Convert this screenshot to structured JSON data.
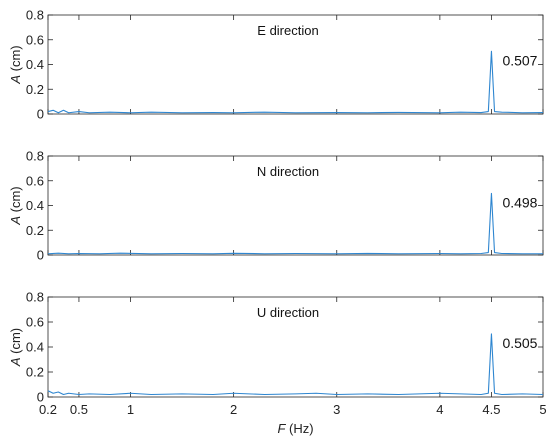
{
  "chart_data": [
    {
      "type": "line",
      "title": "E direction",
      "xlabel_var": "F",
      "xlabel_unit": " (Hz)",
      "ylabel_var": "A",
      "ylabel_unit": " (cm)",
      "xlim": [
        0.2,
        5
      ],
      "ylim": [
        0,
        0.8
      ],
      "xticks": [
        0.2,
        0.5,
        1,
        2,
        3,
        4,
        4.5,
        5
      ],
      "xtick_labels": [
        "0.2",
        "0.5",
        "1",
        "2",
        "3",
        "4",
        "4.5",
        "5"
      ],
      "yticks": [
        0,
        0.2,
        0.4,
        0.6,
        0.8
      ],
      "ytick_labels": [
        "0",
        "0.2",
        "0.4",
        "0.6",
        "0.8"
      ],
      "grid": false,
      "color": "#2e86d0",
      "peak": {
        "x": 4.5,
        "y": 0.507,
        "label": "0.507"
      },
      "series": [
        {
          "x": [
            0.2,
            0.25,
            0.3,
            0.35,
            0.4,
            0.5,
            0.6,
            0.8,
            1.0,
            1.2,
            1.5,
            1.8,
            2.0,
            2.3,
            2.6,
            3.0,
            3.3,
            3.6,
            4.0,
            4.2,
            4.4,
            4.47,
            4.5,
            4.53,
            4.6,
            4.8,
            5.0
          ],
          "y": [
            0.02,
            0.03,
            0.01,
            0.03,
            0.01,
            0.02,
            0.01,
            0.015,
            0.01,
            0.015,
            0.01,
            0.012,
            0.01,
            0.015,
            0.01,
            0.012,
            0.01,
            0.013,
            0.01,
            0.015,
            0.012,
            0.02,
            0.507,
            0.02,
            0.015,
            0.01,
            0.012
          ]
        }
      ]
    },
    {
      "type": "line",
      "title": "N direction",
      "xlabel_var": "F",
      "xlabel_unit": " (Hz)",
      "ylabel_var": "A",
      "ylabel_unit": " (cm)",
      "xlim": [
        0.2,
        5
      ],
      "ylim": [
        0,
        0.8
      ],
      "xticks": [
        0.2,
        0.5,
        1,
        2,
        3,
        4,
        4.5,
        5
      ],
      "xtick_labels": [
        "0.2",
        "0.5",
        "1",
        "2",
        "3",
        "4",
        "4.5",
        "5"
      ],
      "yticks": [
        0,
        0.2,
        0.4,
        0.6,
        0.8
      ],
      "ytick_labels": [
        "0",
        "0.2",
        "0.4",
        "0.6",
        "0.8"
      ],
      "grid": false,
      "color": "#2e86d0",
      "peak": {
        "x": 4.5,
        "y": 0.498,
        "label": "0.498"
      },
      "series": [
        {
          "x": [
            0.2,
            0.3,
            0.4,
            0.5,
            0.7,
            0.9,
            1.2,
            1.5,
            1.8,
            2.0,
            2.3,
            2.6,
            3.0,
            3.3,
            3.6,
            4.0,
            4.2,
            4.4,
            4.47,
            4.5,
            4.53,
            4.6,
            4.8,
            5.0
          ],
          "y": [
            0.01,
            0.015,
            0.01,
            0.012,
            0.01,
            0.015,
            0.01,
            0.012,
            0.01,
            0.014,
            0.01,
            0.012,
            0.01,
            0.013,
            0.01,
            0.012,
            0.01,
            0.012,
            0.02,
            0.498,
            0.02,
            0.012,
            0.01,
            0.01
          ]
        }
      ]
    },
    {
      "type": "line",
      "title": "U direction",
      "xlabel_var": "F",
      "xlabel_unit": " (Hz)",
      "ylabel_var": "A",
      "ylabel_unit": " (cm)",
      "xlim": [
        0.2,
        5
      ],
      "ylim": [
        0,
        0.8
      ],
      "xticks": [
        0.2,
        0.5,
        1,
        2,
        3,
        4,
        4.5,
        5
      ],
      "xtick_labels": [
        "0.2",
        "0.5",
        "1",
        "2",
        "3",
        "4",
        "4.5",
        "5"
      ],
      "yticks": [
        0,
        0.2,
        0.4,
        0.6,
        0.8
      ],
      "ytick_labels": [
        "0",
        "0.2",
        "0.4",
        "0.6",
        "0.8"
      ],
      "grid": false,
      "color": "#2e86d0",
      "peak": {
        "x": 4.5,
        "y": 0.505,
        "label": "0.505"
      },
      "series": [
        {
          "x": [
            0.2,
            0.25,
            0.3,
            0.35,
            0.4,
            0.5,
            0.6,
            0.8,
            1.0,
            1.2,
            1.5,
            1.8,
            2.0,
            2.3,
            2.6,
            2.8,
            3.0,
            3.3,
            3.6,
            4.0,
            4.2,
            4.4,
            4.47,
            4.5,
            4.53,
            4.6,
            4.8,
            5.0
          ],
          "y": [
            0.05,
            0.03,
            0.04,
            0.02,
            0.03,
            0.02,
            0.025,
            0.02,
            0.03,
            0.02,
            0.025,
            0.02,
            0.03,
            0.02,
            0.025,
            0.03,
            0.02,
            0.025,
            0.02,
            0.03,
            0.025,
            0.02,
            0.03,
            0.505,
            0.03,
            0.02,
            0.025,
            0.02
          ]
        }
      ]
    }
  ]
}
